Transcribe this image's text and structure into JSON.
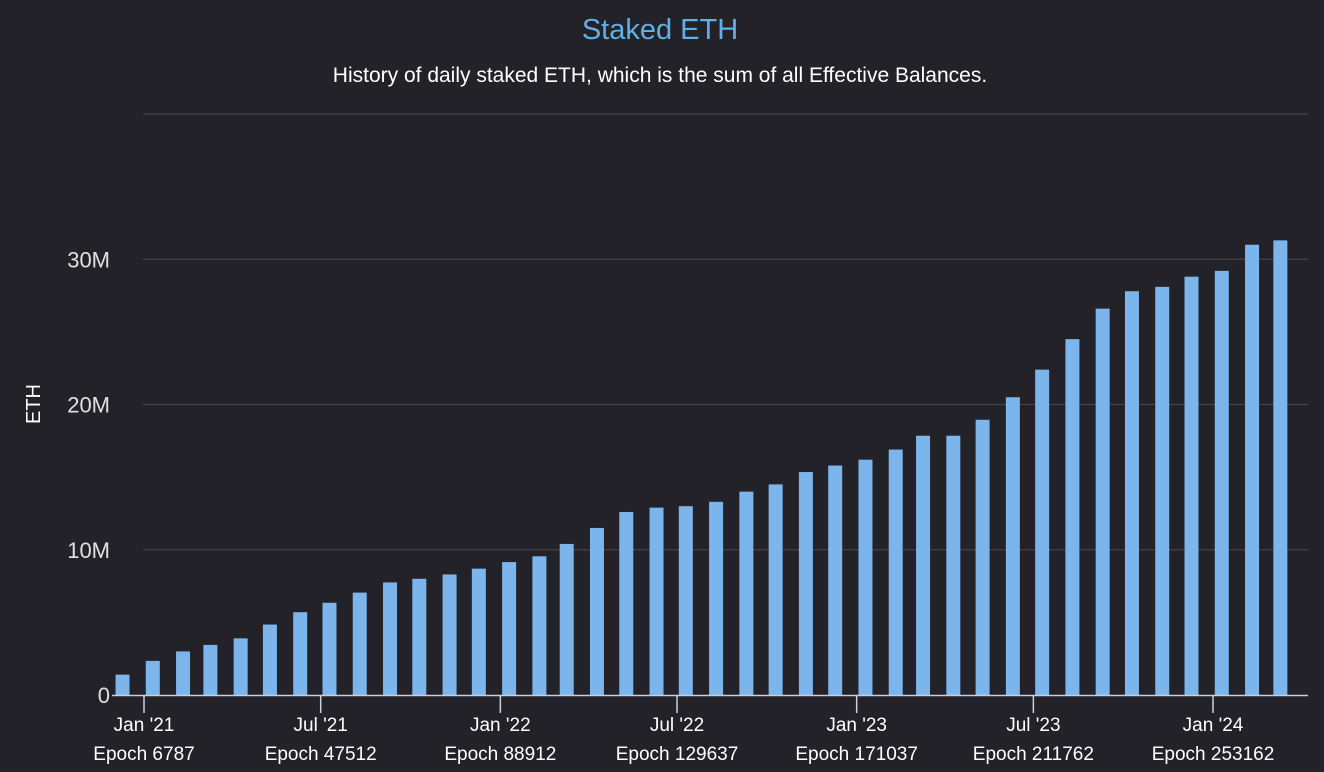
{
  "chart_data": {
    "type": "bar",
    "title": "Staked ETH",
    "subtitle": "History of daily staked ETH, which is the sum of all Effective Balances.",
    "xlabel": "",
    "ylabel": "ETH",
    "ylim": [
      0,
      40000000
    ],
    "yticks": [
      {
        "value": 0,
        "label": "0"
      },
      {
        "value": 10000000,
        "label": "10M"
      },
      {
        "value": 20000000,
        "label": "20M"
      },
      {
        "value": 30000000,
        "label": "30M"
      },
      {
        "value": 40000000,
        "label": ""
      }
    ],
    "xticks": [
      {
        "date": "2021-01-01",
        "label": "Jan '21",
        "epoch": "Epoch 6787"
      },
      {
        "date": "2021-07-01",
        "label": "Jul '21",
        "epoch": "Epoch 47512"
      },
      {
        "date": "2022-01-01",
        "label": "Jan '22",
        "epoch": "Epoch 88912"
      },
      {
        "date": "2022-07-01",
        "label": "Jul '22",
        "epoch": "Epoch 129637"
      },
      {
        "date": "2023-01-01",
        "label": "Jan '23",
        "epoch": "Epoch 171037"
      },
      {
        "date": "2023-07-01",
        "label": "Jul '23",
        "epoch": "Epoch 211762"
      },
      {
        "date": "2024-01-01",
        "label": "Jan '24",
        "epoch": "Epoch 253162"
      }
    ],
    "grid": true,
    "legend": "none",
    "bar_color": "#7cb5ec",
    "x": [
      "2020-12",
      "2021-01",
      "2021-02",
      "2021-03",
      "2021-04",
      "2021-05",
      "2021-06",
      "2021-07",
      "2021-08",
      "2021-09",
      "2021-10",
      "2021-11",
      "2021-12",
      "2022-01",
      "2022-02",
      "2022-03",
      "2022-04",
      "2022-05",
      "2022-06",
      "2022-07",
      "2022-08",
      "2022-09",
      "2022-10",
      "2022-11",
      "2022-12",
      "2023-01",
      "2023-02",
      "2023-03",
      "2023-04",
      "2023-05",
      "2023-06",
      "2023-07",
      "2023-08",
      "2023-09",
      "2023-10",
      "2023-11",
      "2023-12",
      "2024-01",
      "2024-02",
      "2024-03"
    ],
    "values": [
      1400000,
      2350000,
      3000000,
      3450000,
      3900000,
      4850000,
      5700000,
      6350000,
      7050000,
      7750000,
      8000000,
      8300000,
      8700000,
      9150000,
      9550000,
      10400000,
      11500000,
      12600000,
      12900000,
      13000000,
      13300000,
      14000000,
      14500000,
      15350000,
      15800000,
      16200000,
      16900000,
      17850000,
      17850000,
      18950000,
      20500000,
      22400000,
      24500000,
      26600000,
      27800000,
      28100000,
      28800000,
      29200000,
      31000000,
      31300000
    ]
  }
}
